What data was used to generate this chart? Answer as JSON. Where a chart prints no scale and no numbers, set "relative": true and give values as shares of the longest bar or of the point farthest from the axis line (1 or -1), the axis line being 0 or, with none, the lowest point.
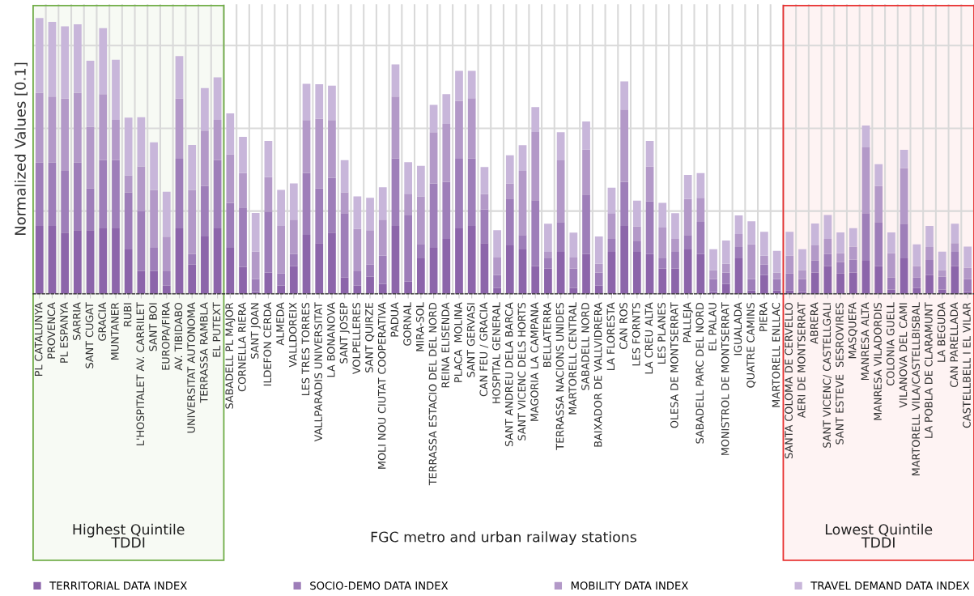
{
  "chart_data": {
    "type": "bar",
    "stacked": true,
    "relative": true,
    "ylabel": "Normalized Values [0.1]",
    "xlabel": "FGC metro and urban railway stations",
    "categories": [
      "PL CATALUNYA",
      "PROVENCA",
      "PL ESPANYA",
      "SARRIA",
      "SANT CUGAT",
      "GRACIA",
      "MUNTANER",
      "RUBI",
      "L'HOSPITALET AV. CARRILET",
      "SANT BOI",
      "EUROPA/FIRA",
      "AV. TIBIDABO",
      "UNIVERSITAT AUTONOMA",
      "TERRASSA RAMBLA",
      "EL PUTEXT",
      "SABADELL PL MAJOR",
      "CORNELLA RIERA",
      "SANT JOAN",
      "ILDEFON CERDA",
      "ALMEDA",
      "VALLDOREIX",
      "LES TRES TORRES",
      "VALLPARADIS UNIVERSITAT",
      "LA BONANOVA",
      "SANT JOSEP",
      "VOLPELLERES",
      "SANT QUIRZE",
      "MOLI NOU CIUTAT COOPERATIVA",
      "PADUA",
      "GORNAL",
      "MIRA-SOL",
      "TERRASSA ESTACIO DEL DEL NORD",
      "REINA ELISENDA",
      "PLACA  MOLINA",
      "SANT GERVASI",
      "CAN FEU / GRACIA",
      "HOSPITAL GENERAL",
      "SANT ANDREU DELA BARCA",
      "SANT VICENC DELS HORTS",
      "MAGORIA LA CAMPANA",
      "BELLATERRA",
      "TERRASSA NACIONS UNIDES",
      "MARTORELL CENTRAL",
      "SABADELL NORD",
      "BAIXADOR DE VALLVIDRERA",
      "LA FLORESTA",
      "CAN ROS",
      "LES FORNTS",
      "LA CREU ALTA",
      "LES PLANES",
      "OLESA DE MONTSERRAT",
      "PALLEJA",
      "SABADELL PARC DEL NORD",
      "EL PALAU",
      "MONISTROL DE MONTSERRAT",
      "IGUALADA",
      "QUATRE CAMINS",
      "PIERA",
      "MARTORELL ENLLAC",
      "SANTA COLOMA DE CERVELLO",
      "AERI DE MONTSERRAT",
      "ABRERA",
      "SANT VICENC/ CASTELLGALI",
      "SANT ESTEVE  SESROVIRES",
      "MASQUEFA",
      "MANRESA ALTA",
      "MANRESA VILADORDIS",
      "COLONIA GUELL",
      "VILANOVA DEL CAMI",
      "MARTORELL VILA/CASTELLBISBAL",
      "LA POBLA DE CLARAMUNT",
      "LA BEGUDA",
      "CAN PARELLADA",
      "CASTELLBELL I EL VILAR"
    ],
    "series": [
      {
        "name": "TERRITORIAL DATA INDEX",
        "color": "#8c65aa",
        "values": [
          0.246,
          0.246,
          0.222,
          0.231,
          0.231,
          0.237,
          0.237,
          0.161,
          0.083,
          0.083,
          0.03,
          0.237,
          0.106,
          0.208,
          0.237,
          0.167,
          0.097,
          0.007,
          0.077,
          0.03,
          0.1,
          0.214,
          0.184,
          0.222,
          0.059,
          0.03,
          0.062,
          0.036,
          0.246,
          0.045,
          0.129,
          0.167,
          0.199,
          0.237,
          0.246,
          0.184,
          0.021,
          0.176,
          0.161,
          0.1,
          0.091,
          0.152,
          0.021,
          0.144,
          0.03,
          0.152,
          0.246,
          0.152,
          0.144,
          0.091,
          0.091,
          0.161,
          0.144,
          0.007,
          0.036,
          0.129,
          0.013,
          0.068,
          0.013,
          0.013,
          0.007,
          0.077,
          0.1,
          0.074,
          0.077,
          0.12,
          0.1,
          0.016,
          0.129,
          0.021,
          0.068,
          0.016,
          0.1,
          0.007
        ]
      },
      {
        "name": "SOCIO-DEMO DATA INDEX",
        "color": "#9e7eb9",
        "values": [
          0.23,
          0.23,
          0.224,
          0.245,
          0.151,
          0.248,
          0.248,
          0.207,
          0.216,
          0.084,
          0.052,
          0.253,
          0.038,
          0.183,
          0.248,
          0.163,
          0.216,
          0.047,
          0.221,
          0.044,
          0.044,
          0.224,
          0.198,
          0.198,
          0.233,
          0.052,
          0.044,
          0.102,
          0.245,
          0.239,
          0.052,
          0.233,
          0.207,
          0.253,
          0.245,
          0.122,
          0.047,
          0.169,
          0.052,
          0.239,
          0.038,
          0.108,
          0.07,
          0.216,
          0.047,
          0.047,
          0.16,
          0.038,
          0.192,
          0.038,
          0.061,
          0.052,
          0.117,
          0.047,
          0.041,
          0.041,
          0.041,
          0.038,
          0.041,
          0.061,
          0.047,
          0.044,
          0.044,
          0.041,
          0.047,
          0.172,
          0.16,
          0.044,
          0.125,
          0.038,
          0.055,
          0.047,
          0.052,
          0.047
        ]
      },
      {
        "name": "MOBILITY DATA INDEX",
        "color": "#b399c8",
        "values": [
          0.253,
          0.239,
          0.262,
          0.253,
          0.224,
          0.239,
          0.146,
          0.061,
          0.163,
          0.21,
          0.125,
          0.218,
          0.233,
          0.201,
          0.146,
          0.175,
          0.125,
          0.099,
          0.125,
          0.172,
          0.125,
          0.192,
          0.253,
          0.21,
          0.076,
          0.154,
          0.125,
          0.131,
          0.224,
          0.079,
          0.172,
          0.186,
          0.21,
          0.21,
          0.218,
          0.055,
          0.064,
          0.055,
          0.233,
          0.248,
          0.023,
          0.224,
          0.041,
          0.163,
          0.032,
          0.093,
          0.262,
          0.055,
          0.125,
          0.111,
          0.047,
          0.131,
          0.087,
          0.032,
          0.032,
          0.047,
          0.125,
          0.032,
          0.023,
          0.064,
          0.032,
          0.055,
          0.055,
          0.032,
          0.047,
          0.239,
          0.131,
          0.087,
          0.201,
          0.041,
          0.047,
          0.023,
          0.032,
          0.041
        ]
      },
      {
        "name": "TRAVEL DEMAND DATA INDEX",
        "color": "#c8b6da",
        "values": [
          0.271,
          0.271,
          0.262,
          0.248,
          0.239,
          0.239,
          0.218,
          0.21,
          0.178,
          0.172,
          0.163,
          0.154,
          0.163,
          0.154,
          0.154,
          0.149,
          0.131,
          0.14,
          0.131,
          0.131,
          0.131,
          0.131,
          0.125,
          0.125,
          0.117,
          0.117,
          0.117,
          0.117,
          0.117,
          0.114,
          0.111,
          0.099,
          0.108,
          0.108,
          0.099,
          0.099,
          0.099,
          0.102,
          0.093,
          0.09,
          0.102,
          0.102,
          0.09,
          0.102,
          0.099,
          0.093,
          0.102,
          0.093,
          0.093,
          0.09,
          0.093,
          0.087,
          0.09,
          0.076,
          0.084,
          0.067,
          0.084,
          0.087,
          0.079,
          0.087,
          0.076,
          0.079,
          0.087,
          0.076,
          0.067,
          0.079,
          0.079,
          0.076,
          0.067,
          0.079,
          0.076,
          0.067,
          0.07,
          0.076
        ]
      }
    ],
    "bands": [
      {
        "axis": "x",
        "from": "PL CATALUNYA",
        "to": "EL PUTEXT",
        "label": "Highest Quintile\nTDDI",
        "color": "#70ad47"
      },
      {
        "axis": "x",
        "from": "SANTA COLOMA DE CERVELLO",
        "to": "CASTELLBELL I EL VILAR",
        "label": "Lowest Quintile\nTDDI",
        "color": "#e8302f"
      }
    ],
    "grid": true,
    "legend": "bottom",
    "tick_labels": "x"
  }
}
